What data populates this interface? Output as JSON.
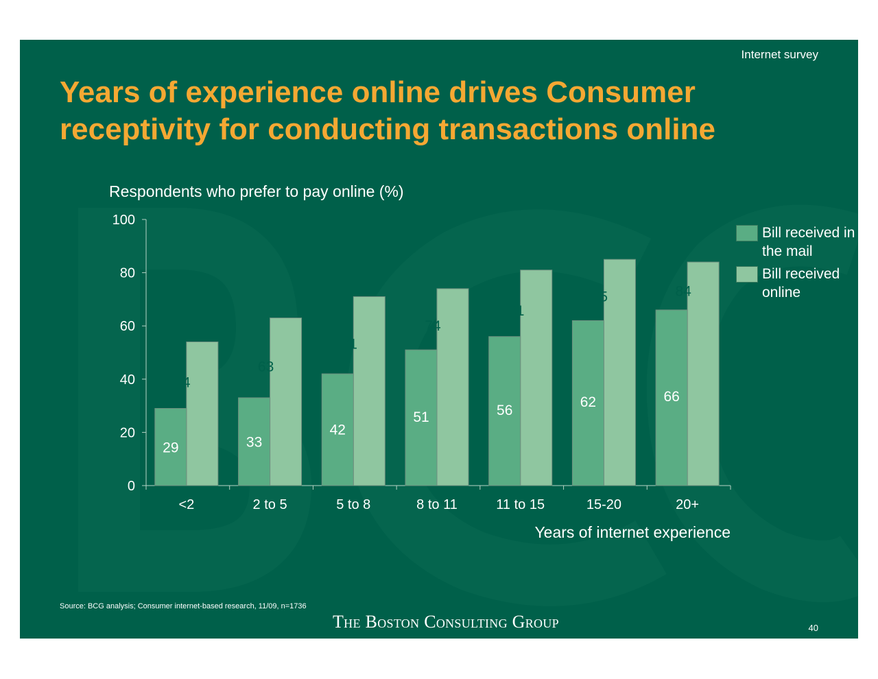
{
  "header": {
    "tag": "Internet survey",
    "title": "Years of experience online drives Consumer receptivity for conducting transactions online"
  },
  "colors": {
    "background": "#00604a",
    "title": "#f5a833",
    "series_mail": "#5aad84",
    "series_online": "#8fc6a0",
    "label_on_online": "#00604a",
    "label_on_mail": "#ffffff"
  },
  "chart_data": {
    "type": "bar",
    "title": "",
    "ylabel": "Respondents who prefer to pay online (%)",
    "xlabel": "Years of internet experience",
    "ylim": [
      0,
      100
    ],
    "yticks": [
      "0",
      "20",
      "40",
      "60",
      "80",
      "100"
    ],
    "categories": [
      "<2",
      "2 to 5",
      "5 to 8",
      "8 to 11",
      "11 to 15",
      "15-20",
      "20+"
    ],
    "series": [
      {
        "name": "Bill received in the mail",
        "values": [
          29,
          33,
          42,
          51,
          56,
          62,
          66
        ]
      },
      {
        "name": "Bill received online",
        "values": [
          54,
          63,
          71,
          74,
          81,
          85,
          84
        ]
      }
    ],
    "legend": "right"
  },
  "footer": {
    "source": "Source: BCG analysis; Consumer internet-based research, 11/09, n=1736",
    "logo": "The Boston Consulting Group",
    "page": "40"
  }
}
